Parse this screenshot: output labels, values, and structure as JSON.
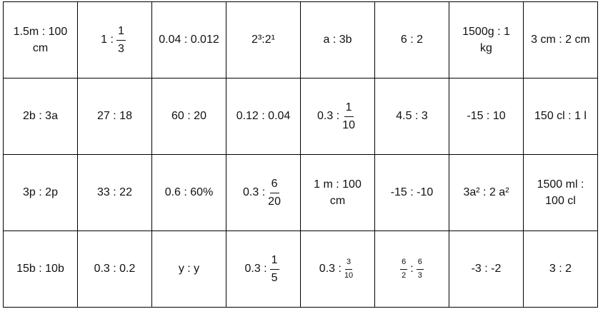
{
  "table": {
    "rows": [
      [
        "1.5m : 100 cm",
        {
          "parts": [
            "1 :",
            {
              "num": "1",
              "den": "3"
            }
          ]
        },
        "0.04 : 0.012",
        "2³:2¹",
        "a : 3b",
        "6 : 2",
        "1500g : 1 kg",
        "3 cm : 2 cm"
      ],
      [
        "2b : 3a",
        "27 : 18",
        "60 : 20",
        "0.12 : 0.04",
        {
          "parts": [
            "0.3 :",
            {
              "num": "1",
              "den": "10"
            }
          ]
        },
        "4.5 : 3",
        "-15 : 10",
        "150 cl : 1 l"
      ],
      [
        "3p : 2p",
        "33 : 22",
        "0.6 : 60%",
        {
          "parts": [
            "0.3 :",
            {
              "num": "6",
              "den": "20"
            }
          ]
        },
        "1 m : 100 cm",
        "-15 : -10",
        "3a² : 2 a²",
        "1500 ml : 100 cl"
      ],
      [
        "15b : 10b",
        "0.3 : 0.2",
        "y : y",
        {
          "parts": [
            "0.3 :",
            {
              "num": "1",
              "den": "5"
            }
          ]
        },
        {
          "parts": [
            "0.3 :",
            {
              "num": "3",
              "den": "10"
            }
          ]
        },
        {
          "parts": [
            {
              "num": "6",
              "den": "2"
            },
            ":",
            {
              "num": "6",
              "den": "3"
            }
          ]
        },
        "-3 : -2",
        "3 : 2"
      ]
    ]
  }
}
